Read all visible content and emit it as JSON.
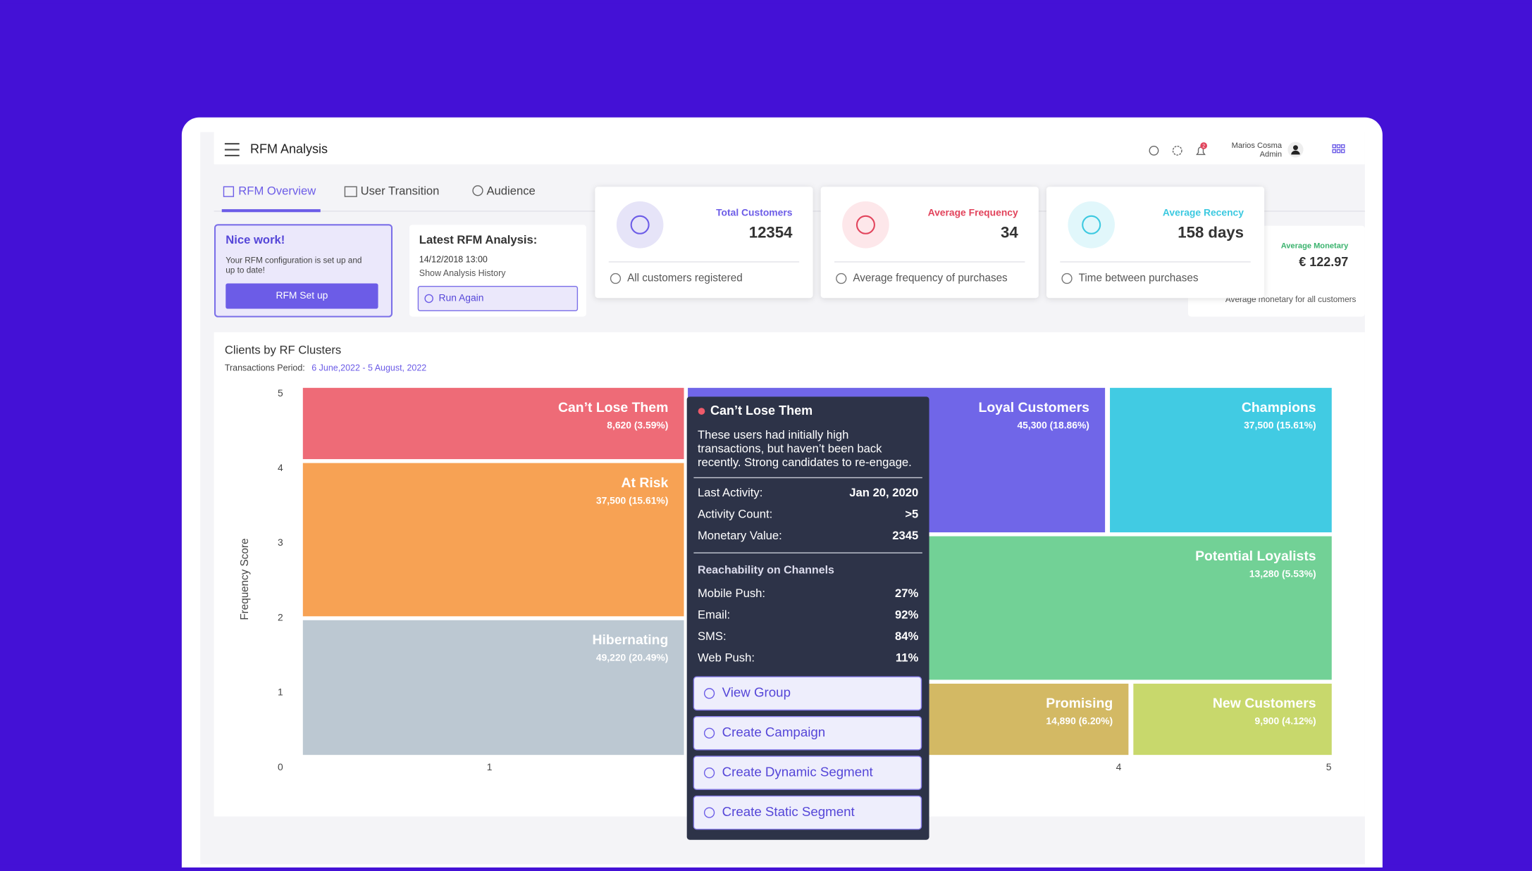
{
  "header": {
    "title": "RFM Analysis",
    "user_name": "Marios Cosma",
    "user_role": "Admin",
    "notifications": "2"
  },
  "tabs": [
    "RFM Overview",
    "User Transition",
    "Audience"
  ],
  "setup_card": {
    "title": "Nice work!",
    "text": [
      "Your RFM configuration is set up and",
      "up to date!"
    ],
    "button": "RFM Set up"
  },
  "latest_card": {
    "title": "Latest RFM Analysis:",
    "date": "14/12/2018  13:00",
    "link": "Show Analysis History",
    "button": "Run Again"
  },
  "stats": [
    {
      "title": "Total Customers",
      "value": "12354",
      "note": "All customers registered"
    },
    {
      "title": "Average Frequency",
      "value": "34",
      "note": "Average frequency of purchases"
    },
    {
      "title": "Average Recency",
      "value": "158 days",
      "note": "Time between purchases"
    },
    {
      "title": "Average Monetary",
      "value": "€ 122.97",
      "note": "Average monetary for all customers"
    }
  ],
  "chart": {
    "title": "Clients by RF Clusters",
    "period_label": "Transactions Period:",
    "period": "6 June,2022 - 5 August, 2022",
    "y_label": "Frequency Score",
    "yticks": [
      0,
      1,
      2,
      3,
      4,
      5
    ],
    "xticks": [
      1,
      4,
      5
    ],
    "clusters": [
      {
        "name": "Can’t Lose Them",
        "label": "8,620 (3.59%)"
      },
      {
        "name": "At Risk",
        "label": "37,500 (15.61%)"
      },
      {
        "name": "Hibernating",
        "label": "49,220 (20.49%)"
      },
      {
        "name": "Loyal Customers",
        "label": "45,300 (18.86%)"
      },
      {
        "name": "Champions",
        "label": "37,500 (15.61%)"
      },
      {
        "name": "Potential Loyalists",
        "label": "13,280 (5.53%)"
      },
      {
        "name": "Promising",
        "label": "14,890 (6.20%)"
      },
      {
        "name": "New Customers",
        "label": "9,900 (4.12%)"
      }
    ]
  },
  "tooltip": {
    "title": "Can’t Lose Them",
    "description": [
      "These users had initially high",
      "transactions, but haven’t been back",
      "recently. Strong candidates to re-engage."
    ],
    "details": [
      [
        "Last Activity:",
        "Jan 20, 2020"
      ],
      [
        "Activity Count:",
        ">5"
      ],
      [
        "Monetary Value:",
        "2345"
      ]
    ],
    "channels_title": "Reachability on Channels",
    "channels": [
      [
        "Mobile Push:",
        "27%"
      ],
      [
        "Email:",
        "92%"
      ],
      [
        "SMS:",
        "84%"
      ],
      [
        "Web Push:",
        "11%"
      ]
    ],
    "buttons": [
      "View Group",
      "Create Campaign",
      "Create Dynamic Segment",
      "Create Static Segment"
    ]
  }
}
